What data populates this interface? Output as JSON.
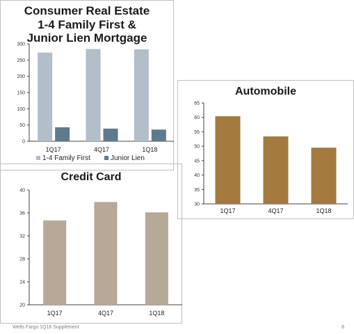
{
  "charts": {
    "mortgage": {
      "title_lines": [
        "Consumer Real Estate",
        "1-4 Family First &",
        "Junior Lien Mortgage"
      ]
    },
    "auto": {
      "title": "Automobile"
    },
    "card": {
      "title": "Credit Card"
    }
  },
  "footer": {
    "text": "Wells Fargo 1Q18 Supplement",
    "page": "8"
  },
  "colors": {
    "first_mortgage": "#b2bec9",
    "junior_lien": "#5f7a8c",
    "automobile": "#a57a3e",
    "credit_card": "#b7a898",
    "axis": "#404040",
    "border": "#bfbfbf"
  },
  "chart_data": [
    {
      "type": "bar",
      "title": "Consumer Real Estate 1-4 Family First & Junior Lien Mortgage",
      "categories": [
        "1Q17",
        "4Q17",
        "1Q18"
      ],
      "series": [
        {
          "name": "1-4 Family First",
          "values": [
            273,
            284,
            283
          ]
        },
        {
          "name": "Junior Lien",
          "values": [
            43,
            39,
            36
          ]
        }
      ],
      "yticks": [
        "0",
        "50",
        "100",
        "150",
        "200",
        "250",
        "300"
      ],
      "ylim": [
        0,
        300
      ],
      "legend": "bottom",
      "grid": false
    },
    {
      "type": "bar",
      "title": "Automobile",
      "categories": [
        "1Q17",
        "4Q17",
        "1Q18"
      ],
      "values": [
        60.4,
        53.4,
        49.5
      ],
      "yticks": [
        "30",
        "35",
        "40",
        "45",
        "50",
        "55",
        "60",
        "65"
      ],
      "ylim": [
        30,
        65
      ],
      "grid": false
    },
    {
      "type": "bar",
      "title": "Credit Card",
      "categories": [
        "1Q17",
        "4Q17",
        "1Q18"
      ],
      "values": [
        34.7,
        37.9,
        36.1
      ],
      "yticks": [
        "20",
        "24",
        "28",
        "32",
        "36",
        "40"
      ],
      "ylim": [
        20,
        40
      ],
      "grid": false
    }
  ]
}
